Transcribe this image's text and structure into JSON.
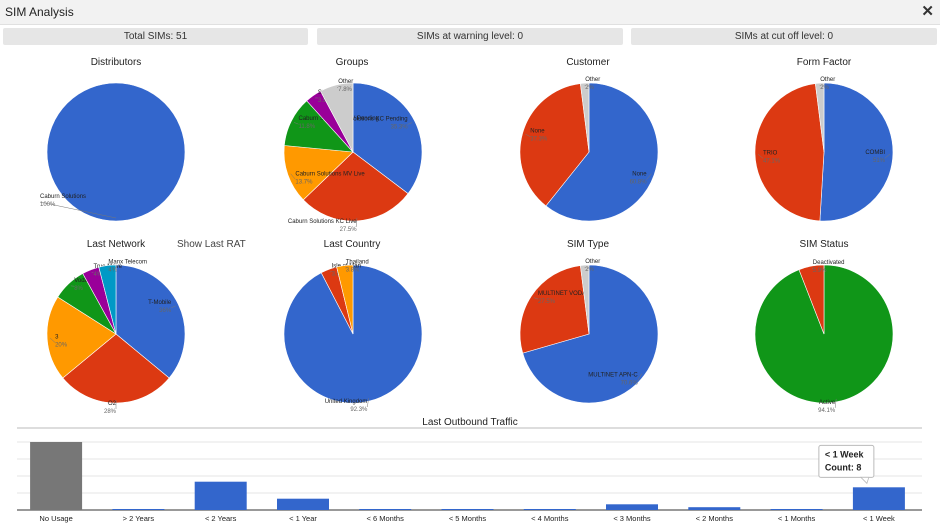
{
  "window": {
    "title": "SIM Analysis",
    "close_glyph": "✕"
  },
  "stats": [
    {
      "label": "Total SIMs: 51"
    },
    {
      "label": "SIMs at warning level: 0"
    },
    {
      "label": "SIMs at cut off level: 0"
    }
  ],
  "show_last_rat": "Show Last RAT",
  "chart_data": [
    {
      "type": "pie",
      "title": "Distributors",
      "slices": [
        {
          "name": "Caburn Solutions",
          "value": 100,
          "label": "100%",
          "color": "#3366cc"
        }
      ]
    },
    {
      "type": "pie",
      "title": "Groups",
      "slices": [
        {
          "name": "Caburn Solutions KC Pending",
          "value": 35.3,
          "label": "35.3%",
          "color": "#3366cc"
        },
        {
          "name": "Caburn Solutions KC Live",
          "value": 27.5,
          "label": "27.5%",
          "color": "#dc3912"
        },
        {
          "name": "Caburn Solutions MV Live",
          "value": 13.7,
          "label": "13.7%",
          "color": "#ff9900"
        },
        {
          "name": "Caburn Solutions MV Pending",
          "value": 11.8,
          "label": "11.8%",
          "color": "#109618"
        },
        {
          "name": "Stock",
          "value": 3.9,
          "label": "3.9%",
          "color": "#990099"
        },
        {
          "name": "Other",
          "value": 7.8,
          "label": "7.8%",
          "color": "#cccccc"
        }
      ]
    },
    {
      "type": "pie",
      "title": "Customer",
      "slices": [
        {
          "name": "None",
          "value": 60.8,
          "label": "60.8%",
          "color": "#3366cc"
        },
        {
          "name": "None",
          "value": 37.3,
          "label": "37.3%",
          "color": "#dc3912"
        },
        {
          "name": "Other",
          "value": 2,
          "label": "2%",
          "color": "#cccccc"
        }
      ]
    },
    {
      "type": "pie",
      "title": "Form Factor",
      "slices": [
        {
          "name": "COMBI",
          "value": 51,
          "label": "51%",
          "color": "#3366cc"
        },
        {
          "name": "TRIO",
          "value": 47.1,
          "label": "47.1%",
          "color": "#dc3912"
        },
        {
          "name": "Other",
          "value": 2,
          "label": "2%",
          "color": "#cccccc"
        }
      ]
    },
    {
      "type": "pie",
      "title": "Last Network",
      "slices": [
        {
          "name": "T-Mobile",
          "value": 36,
          "label": "36%",
          "color": "#3366cc"
        },
        {
          "name": "O2",
          "value": 28,
          "label": "28%",
          "color": "#dc3912"
        },
        {
          "name": "3",
          "value": 20,
          "label": "20%",
          "color": "#ff9900"
        },
        {
          "name": "Vodafone",
          "value": 8,
          "label": "8%",
          "color": "#109618"
        },
        {
          "name": "True Move",
          "value": 4,
          "label": "4%",
          "color": "#990099"
        },
        {
          "name": "Manx Telecom",
          "value": 4,
          "label": "4%",
          "color": "#0099c6"
        }
      ]
    },
    {
      "type": "pie",
      "title": "Last Country",
      "slices": [
        {
          "name": "United Kingdom",
          "value": 92.3,
          "label": "92.3%",
          "color": "#3366cc"
        },
        {
          "name": "Isle of Man",
          "value": 3.8,
          "label": "3.8%",
          "color": "#dc3912"
        },
        {
          "name": "Thailand",
          "value": 3.8,
          "label": "3.8%",
          "color": "#ff9900"
        }
      ]
    },
    {
      "type": "pie",
      "title": "SIM Type",
      "slices": [
        {
          "name": "MULTINET APN-C",
          "value": 70.6,
          "label": "70.6%",
          "color": "#3366cc"
        },
        {
          "name": "MULTINET VODA",
          "value": 27.5,
          "label": "27.5%",
          "color": "#dc3912"
        },
        {
          "name": "Other",
          "value": 2,
          "label": "2%",
          "color": "#cccccc"
        }
      ]
    },
    {
      "type": "pie",
      "title": "SIM Status",
      "slices": [
        {
          "name": "Active",
          "value": 94.1,
          "label": "94.1%",
          "color": "#109618"
        },
        {
          "name": "Deactivated",
          "value": 5.9,
          "label": "5.9%",
          "color": "#dc3912"
        }
      ]
    },
    {
      "type": "bar",
      "title": "Last Outbound Traffic",
      "categories": [
        "No Usage",
        "> 2 Years",
        "< 2 Years",
        "< 1 Year",
        "< 6 Months",
        "< 5 Months",
        "< 4 Months",
        "< 3 Months",
        "< 2 Months",
        "< 1 Months",
        "< 1 Week"
      ],
      "values": [
        24,
        0,
        10,
        4,
        0,
        0,
        0,
        2,
        1,
        0,
        8
      ],
      "colors": [
        "#777777",
        "#3366cc",
        "#3366cc",
        "#3366cc",
        "#3366cc",
        "#3366cc",
        "#3366cc",
        "#3366cc",
        "#3366cc",
        "#3366cc",
        "#3366cc"
      ],
      "tooltip": {
        "title": "< 1 Week",
        "text": "Count: 8"
      }
    }
  ]
}
